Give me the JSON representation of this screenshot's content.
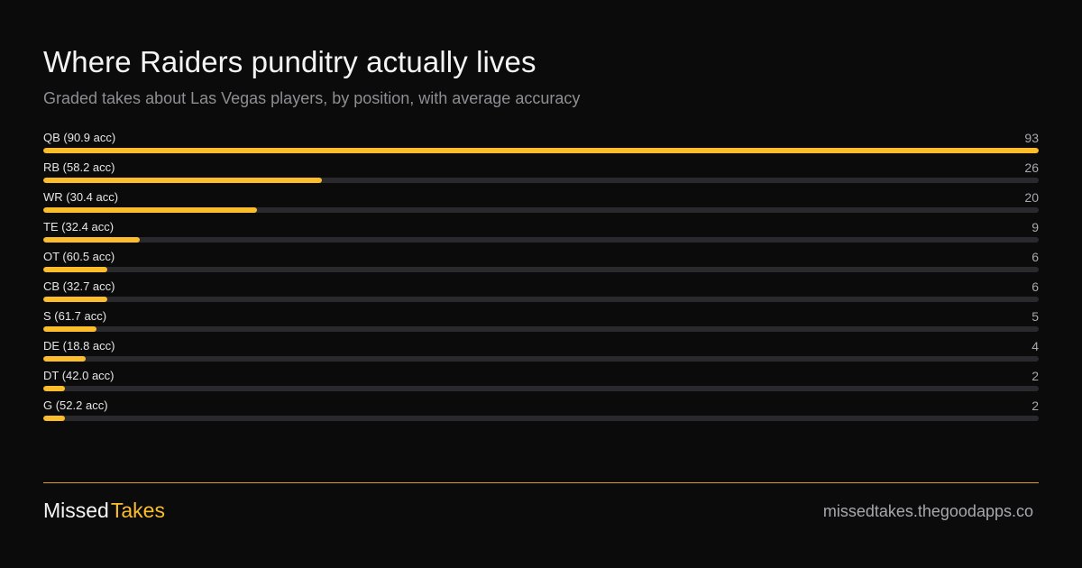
{
  "header": {
    "title": "Where Raiders punditry actually lives",
    "subtitle": "Graded takes about Las Vegas players, by position, with average accuracy"
  },
  "colors": {
    "background": "#0b0b0b",
    "bar_fill": "#fbbd2c",
    "bar_track": "#2a2a2e",
    "muted_text": "#8e8e93"
  },
  "chart_data": {
    "type": "bar",
    "orientation": "horizontal",
    "title": "Where Raiders punditry actually lives",
    "subtitle": "Graded takes about Las Vegas players, by position, with average accuracy",
    "categories": [
      "QB (90.9 acc)",
      "RB (58.2 acc)",
      "WR (30.4 acc)",
      "TE (32.4 acc)",
      "OT (60.5 acc)",
      "CB (32.7 acc)",
      "S (61.7 acc)",
      "DE (18.8 acc)",
      "DT (42.0 acc)",
      "G (52.2 acc)"
    ],
    "values": [
      93,
      26,
      20,
      9,
      6,
      6,
      5,
      4,
      2,
      2
    ],
    "value_labels": [
      "93",
      "26",
      "20",
      "9",
      "6",
      "6",
      "5",
      "4",
      "2",
      "2"
    ],
    "xlim": [
      0,
      93
    ],
    "grid": false
  },
  "footer": {
    "brand_part1": "Missed",
    "brand_part2": "Takes",
    "url": "missedtakes.thegoodapps.co"
  }
}
